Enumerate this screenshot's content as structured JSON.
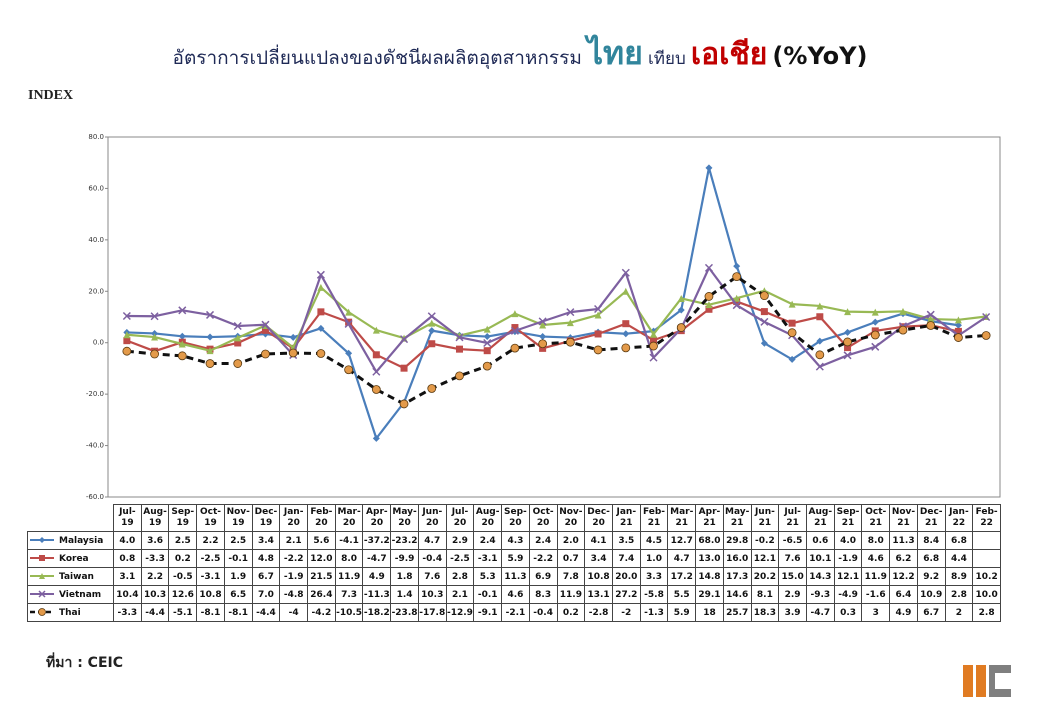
{
  "chart_data": {
    "type": "line",
    "title": [
      "อัตราการเปลี่ยนแปลงของดัชนีผลผลิตอุตสาหกรรม",
      "ไทย",
      "เทียบ",
      "เอเชีย",
      "(%YoY)"
    ],
    "y_label": "INDEX",
    "source": "ที่มา : CEIC",
    "categories": [
      "Jul-19",
      "Aug-19",
      "Sep-19",
      "Oct-19",
      "Nov-19",
      "Dec-19",
      "Jan-20",
      "Feb-20",
      "Mar-20",
      "Apr-20",
      "May-20",
      "Jun-20",
      "Jul-20",
      "Aug-20",
      "Sep-20",
      "Oct-20",
      "Nov-20",
      "Dec-20",
      "Jan-21",
      "Feb-21",
      "Mar-21",
      "Apr-21",
      "May-21",
      "Jun-21",
      "Jul-21",
      "Aug-21",
      "Sep-21",
      "Oct-21",
      "Nov-21",
      "Dec-21",
      "Jan-22",
      "Feb-22"
    ],
    "ylim": [
      -60,
      80
    ],
    "yticks": [
      {
        "value": -60,
        "label": "-60.0"
      },
      {
        "value": -40,
        "label": "-40.0"
      },
      {
        "value": -20,
        "label": "-20.0"
      },
      {
        "value": 0,
        "label": "0.0"
      },
      {
        "value": 20,
        "label": "20.0"
      },
      {
        "value": 40,
        "label": "40.0"
      },
      {
        "value": 60,
        "label": "60.0"
      },
      {
        "value": 80,
        "label": "80.0"
      }
    ],
    "series": [
      {
        "name": "Malaysia",
        "color": "#4a7ebb",
        "marker": "diamond",
        "dashed": false,
        "values": [
          4.0,
          3.6,
          2.5,
          2.2,
          2.5,
          3.4,
          2.1,
          5.6,
          -4.1,
          -37.2,
          -23.2,
          4.7,
          2.9,
          2.4,
          4.3,
          2.4,
          2.0,
          4.1,
          3.5,
          4.5,
          12.7,
          68.0,
          29.8,
          -0.2,
          -6.5,
          0.6,
          4.0,
          8.0,
          11.3,
          8.4,
          6.8,
          null
        ],
        "value_labels": [
          "4.0",
          "3.6",
          "2.5",
          "2.2",
          "2.5",
          "3.4",
          "2.1",
          "5.6",
          "-4.1",
          "-37.2",
          "-23.2",
          "4.7",
          "2.9",
          "2.4",
          "4.3",
          "2.4",
          "2.0",
          "4.1",
          "3.5",
          "4.5",
          "12.7",
          "68.0",
          "29.8",
          "-0.2",
          "-6.5",
          "0.6",
          "4.0",
          "8.0",
          "11.3",
          "8.4",
          "6.8",
          null
        ]
      },
      {
        "name": "Korea",
        "color": "#be4b48",
        "marker": "square",
        "dashed": false,
        "values": [
          0.8,
          -3.3,
          0.2,
          -2.5,
          -0.1,
          4.8,
          -2.2,
          12.0,
          8.0,
          -4.7,
          -9.9,
          -0.4,
          -2.5,
          -3.1,
          5.9,
          -2.2,
          0.7,
          3.4,
          7.4,
          1.0,
          4.7,
          13.0,
          16.0,
          12.1,
          7.6,
          10.1,
          -1.9,
          4.6,
          6.2,
          6.8,
          4.4,
          null
        ],
        "value_labels": [
          "0.8",
          "-3.3",
          "0.2",
          "-2.5",
          "-0.1",
          "4.8",
          "-2.2",
          "12.0",
          "8.0",
          "-4.7",
          "-9.9",
          "-0.4",
          "-2.5",
          "-3.1",
          "5.9",
          "-2.2",
          "0.7",
          "3.4",
          "7.4",
          "1.0",
          "4.7",
          "13.0",
          "16.0",
          "12.1",
          "7.6",
          "10.1",
          "-1.9",
          "4.6",
          "6.2",
          "6.8",
          "4.4",
          null
        ]
      },
      {
        "name": "Taiwan",
        "color": "#98b954",
        "marker": "triangle",
        "dashed": false,
        "values": [
          3.1,
          2.2,
          -0.5,
          -3.1,
          1.9,
          6.7,
          -1.9,
          21.5,
          11.9,
          4.9,
          1.8,
          7.6,
          2.8,
          5.3,
          11.3,
          6.9,
          7.8,
          10.8,
          20.0,
          3.3,
          17.2,
          14.8,
          17.3,
          20.2,
          15.0,
          14.3,
          12.1,
          11.9,
          12.2,
          9.2,
          8.9,
          10.2
        ],
        "value_labels": [
          "3.1",
          "2.2",
          "-0.5",
          "-3.1",
          "1.9",
          "6.7",
          "-1.9",
          "21.5",
          "11.9",
          "4.9",
          "1.8",
          "7.6",
          "2.8",
          "5.3",
          "11.3",
          "6.9",
          "7.8",
          "10.8",
          "20.0",
          "3.3",
          "17.2",
          "14.8",
          "17.3",
          "20.2",
          "15.0",
          "14.3",
          "12.1",
          "11.9",
          "12.2",
          "9.2",
          "8.9",
          "10.2"
        ]
      },
      {
        "name": "Vietnam",
        "color": "#7d60a0",
        "marker": "cross",
        "dashed": false,
        "values": [
          10.4,
          10.3,
          12.6,
          10.8,
          6.5,
          7.0,
          -4.8,
          26.4,
          7.3,
          -11.3,
          1.4,
          10.3,
          2.1,
          -0.1,
          4.6,
          8.3,
          11.9,
          13.1,
          27.2,
          -5.8,
          5.5,
          29.1,
          14.6,
          8.1,
          2.9,
          -9.3,
          -4.9,
          -1.6,
          6.4,
          10.9,
          2.8,
          10.0
        ],
        "value_labels": [
          "10.4",
          "10.3",
          "12.6",
          "10.8",
          "6.5",
          "7.0",
          "-4.8",
          "26.4",
          "7.3",
          "-11.3",
          "1.4",
          "10.3",
          "2.1",
          "-0.1",
          "4.6",
          "8.3",
          "11.9",
          "13.1",
          "27.2",
          "-5.8",
          "5.5",
          "29.1",
          "14.6",
          "8.1",
          "2.9",
          "-9.3",
          "-4.9",
          "-1.6",
          "6.4",
          "10.9",
          "2.8",
          "10.0"
        ]
      },
      {
        "name": "Thai",
        "color": "#111111",
        "marker": "circle",
        "marker_color": "#e39a4a",
        "dashed": true,
        "values": [
          -3.3,
          -4.4,
          -5.1,
          -8.1,
          -8.1,
          -4.4,
          -4,
          -4.2,
          -10.5,
          -18.2,
          -23.8,
          -17.8,
          -12.9,
          -9.1,
          -2.1,
          -0.4,
          0.2,
          -2.8,
          -2,
          -1.3,
          5.9,
          18,
          25.7,
          18.3,
          3.9,
          -4.7,
          0.3,
          3,
          4.9,
          6.7,
          2,
          2.8
        ]
      }
    ]
  }
}
